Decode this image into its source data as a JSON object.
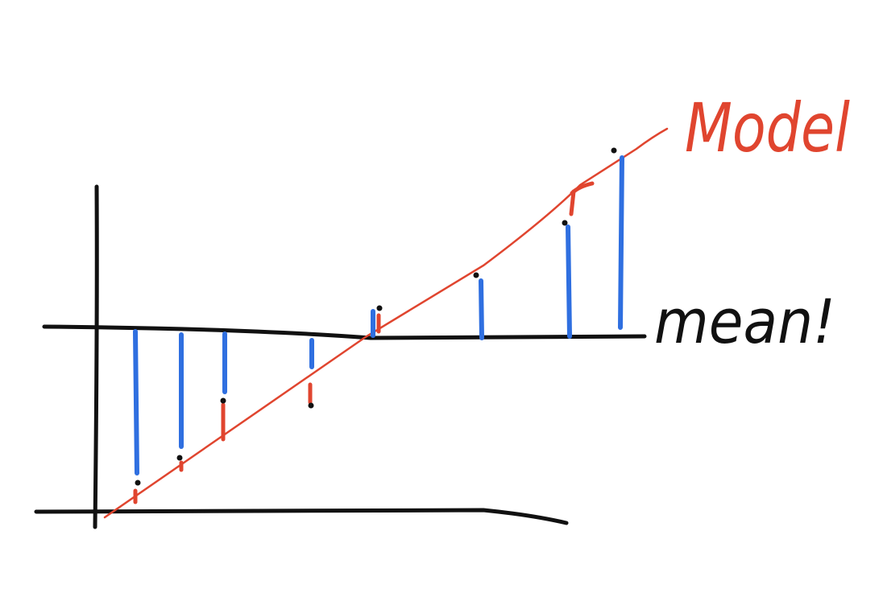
{
  "labels": {
    "model": "Model",
    "mean": "mean!"
  },
  "colors": {
    "ink": "#111111",
    "model": "#e0452f",
    "residual_total": "#2f6fe0",
    "residual_model": "#e0452f"
  }
}
